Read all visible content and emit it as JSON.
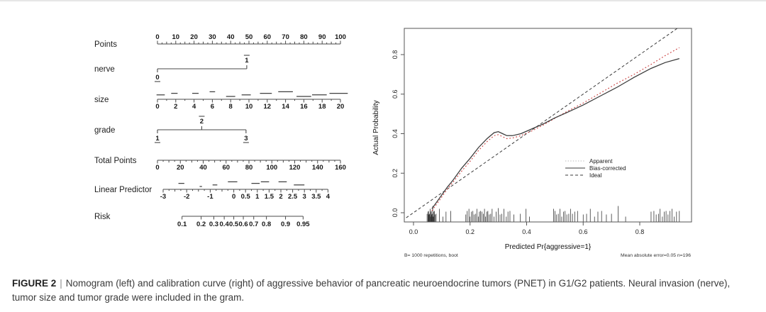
{
  "caption": {
    "label": "FIGURE 2",
    "separator": "|",
    "text": "Nomogram (left) and calibration curve (right) of aggressive behavior of pancreatic neuroendocrine tumors (PNET) in G1/G2 patients. Neural invasion (nerve), tumor size and tumor grade were included in the gram."
  },
  "colors": {
    "axis": "#4a4a4a",
    "tick_text": "#161616",
    "apparent_red": "#c93a3a",
    "line_dark": "#3a3a3a",
    "legend_gray": "#b9b9b9",
    "top_border": "#e6e6e6"
  },
  "chart_data": [
    {
      "type": "nomogram",
      "rows": [
        {
          "id": "points",
          "label": "Points",
          "kind": "axis",
          "min": 0,
          "max": 100,
          "major": 10,
          "mid": 5,
          "minor": 2.5,
          "labels_side": "above"
        },
        {
          "id": "nerve",
          "label": "nerve",
          "kind": "categorical",
          "levels": [
            {
              "label": "0",
              "points": 0,
              "side": "below"
            },
            {
              "label": "1",
              "points": 48.8,
              "side": "above"
            }
          ]
        },
        {
          "id": "size",
          "label": "size",
          "kind": "axis",
          "min": 0,
          "max": 20,
          "major": 2,
          "minor": 1,
          "labels_side": "below",
          "density": [
            {
              "from": -0.1,
              "to": 0.8,
              "lift": 1
            },
            {
              "from": 1.5,
              "to": 2.2,
              "lift": 2
            },
            {
              "from": 3.8,
              "to": 4.5,
              "lift": 2
            },
            {
              "from": 5.7,
              "to": 6.3,
              "lift": 3
            },
            {
              "from": 7.5,
              "to": 8.5,
              "lift": 0
            },
            {
              "from": 9.2,
              "to": 10.2,
              "lift": 1
            },
            {
              "from": 11.2,
              "to": 12.5,
              "lift": 2
            },
            {
              "from": 13.2,
              "to": 14.8,
              "lift": 3
            },
            {
              "from": 15.2,
              "to": 16.8,
              "lift": 0
            },
            {
              "from": 16.9,
              "to": 18.5,
              "lift": 1
            },
            {
              "from": 18.8,
              "to": 20.8,
              "lift": 2
            }
          ]
        },
        {
          "id": "grade",
          "label": "grade",
          "kind": "categorical",
          "levels": [
            {
              "label": "1",
              "points": 0,
              "side": "below"
            },
            {
              "label": "2",
              "points": 24.2,
              "side": "above"
            },
            {
              "label": "3",
              "points": 48.4,
              "side": "below"
            }
          ]
        },
        {
          "id": "total",
          "label": "Total Points",
          "kind": "axis",
          "min": 0,
          "max": 160,
          "major": 20,
          "mid": 10,
          "minor": 5,
          "labels_side": "below"
        },
        {
          "id": "lp",
          "label": "Linear Predictor",
          "kind": "axis",
          "min": -3,
          "max": 4,
          "minor": 0.25,
          "mid": 0.5,
          "tick_labels": [
            -3,
            -2,
            -1,
            0,
            0.5,
            1,
            1.5,
            2,
            2.5,
            3,
            3.5,
            4
          ],
          "labels_side": "below",
          "density": [
            {
              "from": -2.35,
              "to": -2.1,
              "lift": 2
            },
            {
              "from": -1.45,
              "to": -1.35,
              "lift": 0
            },
            {
              "from": -0.9,
              "to": -0.7,
              "lift": 1
            },
            {
              "from": -0.25,
              "to": 0.15,
              "lift": 3
            },
            {
              "from": 0.75,
              "to": 1.1,
              "lift": 2
            },
            {
              "from": 1.15,
              "to": 1.5,
              "lift": 3
            },
            {
              "from": 1.9,
              "to": 2.25,
              "lift": 3
            },
            {
              "from": 2.55,
              "to": 3.0,
              "lift": 1
            }
          ]
        },
        {
          "id": "risk",
          "label": "Risk",
          "kind": "risk",
          "ticks": [
            0.1,
            0.2,
            0.3,
            0.4,
            0.5,
            0.6,
            0.7,
            0.8,
            0.9,
            0.95
          ]
        }
      ]
    },
    {
      "type": "line",
      "xlabel": "Predicted Pr{aggressive=1}",
      "ylabel": "Actual Probability",
      "xlim": [
        -0.03,
        0.98
      ],
      "ylim": [
        -0.05,
        0.93
      ],
      "xticks": [
        0,
        0.2,
        0.4,
        0.6,
        0.8
      ],
      "xtick_labels": [
        "0.0",
        "0.2",
        "0.4",
        "0.6",
        "0.8"
      ],
      "yticks": [
        0,
        0.2,
        0.4,
        0.6,
        0.8
      ],
      "ytick_labels": [
        "0.0",
        "0.2",
        "0.4",
        "0.6",
        "0.8"
      ],
      "grid": false,
      "series": [
        {
          "name": "Ideal",
          "line": "dashed",
          "color": "#3a3a3a",
          "width": 1,
          "points": [
            [
              -0.04,
              -0.04
            ],
            [
              0.98,
              0.98
            ]
          ]
        },
        {
          "name": "Apparent",
          "line": "dotted",
          "color": "#c93a3a",
          "width": 1.1,
          "points": [
            [
              0.065,
              0.01
            ],
            [
              0.08,
              0.04
            ],
            [
              0.1,
              0.08
            ],
            [
              0.12,
              0.12
            ],
            [
              0.14,
              0.155
            ],
            [
              0.17,
              0.21
            ],
            [
              0.2,
              0.26
            ],
            [
              0.23,
              0.315
            ],
            [
              0.26,
              0.36
            ],
            [
              0.285,
              0.39
            ],
            [
              0.3,
              0.395
            ],
            [
              0.315,
              0.385
            ],
            [
              0.33,
              0.375
            ],
            [
              0.35,
              0.378
            ],
            [
              0.38,
              0.39
            ],
            [
              0.42,
              0.415
            ],
            [
              0.46,
              0.445
            ],
            [
              0.5,
              0.478
            ],
            [
              0.54,
              0.51
            ],
            [
              0.6,
              0.555
            ],
            [
              0.66,
              0.605
            ],
            [
              0.72,
              0.655
            ],
            [
              0.78,
              0.7
            ],
            [
              0.84,
              0.75
            ],
            [
              0.89,
              0.795
            ],
            [
              0.94,
              0.835
            ]
          ]
        },
        {
          "name": "Bias-corrected",
          "line": "solid",
          "color": "#3a3a3a",
          "width": 1.25,
          "points": [
            [
              0.065,
              0.02
            ],
            [
              0.08,
              0.05
            ],
            [
              0.1,
              0.09
            ],
            [
              0.12,
              0.13
            ],
            [
              0.14,
              0.165
            ],
            [
              0.17,
              0.225
            ],
            [
              0.2,
              0.275
            ],
            [
              0.23,
              0.33
            ],
            [
              0.26,
              0.375
            ],
            [
              0.285,
              0.405
            ],
            [
              0.3,
              0.41
            ],
            [
              0.315,
              0.4
            ],
            [
              0.33,
              0.39
            ],
            [
              0.35,
              0.39
            ],
            [
              0.38,
              0.4
            ],
            [
              0.42,
              0.425
            ],
            [
              0.46,
              0.45
            ],
            [
              0.5,
              0.48
            ],
            [
              0.54,
              0.505
            ],
            [
              0.6,
              0.545
            ],
            [
              0.66,
              0.59
            ],
            [
              0.72,
              0.635
            ],
            [
              0.78,
              0.685
            ],
            [
              0.84,
              0.73
            ],
            [
              0.89,
              0.76
            ],
            [
              0.94,
              0.78
            ]
          ]
        }
      ],
      "legend": [
        {
          "name": "Apparent",
          "line": "dotted",
          "color": "#b9b9b9"
        },
        {
          "name": "Bias-corrected",
          "line": "solid",
          "color": "#3a3a3a"
        },
        {
          "name": "Ideal",
          "line": "dashed",
          "color": "#3a3a3a"
        }
      ],
      "rug_x": [
        0.048,
        0.051,
        0.053,
        0.055,
        0.057,
        0.059,
        0.06,
        0.062,
        0.063,
        0.065,
        0.066,
        0.068,
        0.07,
        0.072,
        0.074,
        0.077,
        0.08,
        0.092,
        0.104,
        0.115,
        0.132,
        0.185,
        0.19,
        0.196,
        0.2,
        0.205,
        0.21,
        0.214,
        0.22,
        0.224,
        0.229,
        0.233,
        0.237,
        0.242,
        0.247,
        0.251,
        0.255,
        0.259,
        0.263,
        0.268,
        0.273,
        0.278,
        0.285,
        0.292,
        0.3,
        0.306,
        0.312,
        0.32,
        0.328,
        0.334,
        0.341,
        0.355,
        0.378,
        0.398,
        0.41,
        0.495,
        0.5,
        0.506,
        0.512,
        0.518,
        0.524,
        0.53,
        0.536,
        0.542,
        0.549,
        0.555,
        0.562,
        0.57,
        0.58,
        0.6,
        0.612,
        0.625,
        0.64,
        0.652,
        0.665,
        0.682,
        0.7,
        0.724,
        0.75,
        0.84,
        0.85,
        0.858,
        0.866,
        0.872,
        0.88,
        0.887,
        0.893,
        0.9,
        0.907,
        0.914,
        0.922,
        0.93,
        0.94
      ],
      "footnotes": {
        "left": "B= 1000 repetitions, boot",
        "right": "Mean absolute error=0.05 n=196"
      }
    }
  ]
}
